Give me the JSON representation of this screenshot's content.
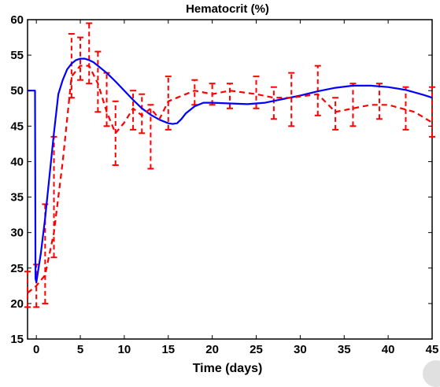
{
  "chart_data": {
    "type": "line",
    "title": "Hematocrit (%)",
    "xlabel": "Time (days)",
    "ylabel": "",
    "xlim": [
      -1,
      45
    ],
    "ylim": [
      15,
      60
    ],
    "xticks": [
      0,
      5,
      10,
      15,
      20,
      25,
      30,
      35,
      40,
      45
    ],
    "yticks": [
      15,
      20,
      25,
      30,
      35,
      40,
      45,
      50,
      55,
      60
    ],
    "grid": false,
    "series": [
      {
        "style": "solid",
        "color": "#0000ff",
        "x": [
          -1,
          -0.15,
          -0.1,
          0,
          0.5,
          1,
          1.5,
          2,
          2.5,
          3,
          3.5,
          4,
          4.5,
          5,
          5.5,
          6,
          6.5,
          7,
          7.5,
          8,
          9,
          10,
          11,
          12,
          13,
          14,
          15,
          15.5,
          16,
          16.5,
          17,
          18,
          19,
          20,
          22,
          24,
          26,
          28,
          30,
          32,
          34,
          36,
          37,
          38,
          40,
          42,
          44,
          45
        ],
        "y": [
          50,
          50,
          23.5,
          23,
          27,
          32,
          38,
          44,
          49.5,
          51.5,
          53,
          53.8,
          54.3,
          54.5,
          54.5,
          54.3,
          54,
          53.5,
          53,
          52.5,
          51.3,
          50,
          48.7,
          47.5,
          46.6,
          45.9,
          45.4,
          45.3,
          45.4,
          46,
          46.8,
          47.8,
          48.3,
          48.3,
          48.2,
          48.1,
          48.3,
          48.8,
          49.3,
          49.9,
          50.4,
          50.7,
          50.7,
          50.7,
          50.5,
          50.1,
          49.4,
          49
        ]
      },
      {
        "style": "dashed",
        "color": "#ff0000",
        "x": [
          -1,
          0,
          1,
          2,
          3,
          4,
          5,
          6,
          7,
          8,
          9,
          10,
          11,
          12,
          13,
          14,
          15,
          16,
          17,
          18,
          20,
          22,
          25,
          27,
          29,
          32,
          34,
          36,
          38,
          40,
          43,
          45
        ],
        "y": [
          21.5,
          22.5,
          24,
          30,
          40,
          52,
          53.5,
          53.5,
          51,
          47,
          44,
          45.5,
          47.5,
          46.5,
          47.5,
          46,
          48.5,
          49,
          49.5,
          50,
          49.5,
          50,
          49.5,
          49,
          49,
          49.5,
          47,
          47.5,
          48,
          48,
          47,
          45.5
        ]
      }
    ],
    "error_bars": {
      "x": [
        -1,
        0,
        1,
        2,
        4,
        5,
        6,
        7,
        8,
        9,
        11,
        12,
        13,
        15,
        18,
        20,
        22,
        25,
        27,
        29,
        32,
        34,
        36,
        39,
        42,
        45
      ],
      "low": [
        19.5,
        19.5,
        20,
        26.5,
        49,
        51.5,
        51,
        47,
        45,
        39.5,
        44.5,
        44,
        39,
        44.5,
        48,
        48,
        47.5,
        47.5,
        46,
        45,
        46.5,
        44.5,
        45,
        46,
        44.5,
        43.5
      ],
      "high": [
        24.5,
        25.5,
        34,
        43.5,
        58,
        57.5,
        59.5,
        55.5,
        52.5,
        48.5,
        50,
        49.5,
        48,
        52,
        51.5,
        51,
        51,
        52,
        50.5,
        52.5,
        53.5,
        49,
        51,
        51,
        50.5,
        50.5
      ]
    }
  },
  "colors": {
    "model_line": "#0000ff",
    "data_line": "#ff0000",
    "axes": "#000000",
    "background": "#ffffff"
  }
}
